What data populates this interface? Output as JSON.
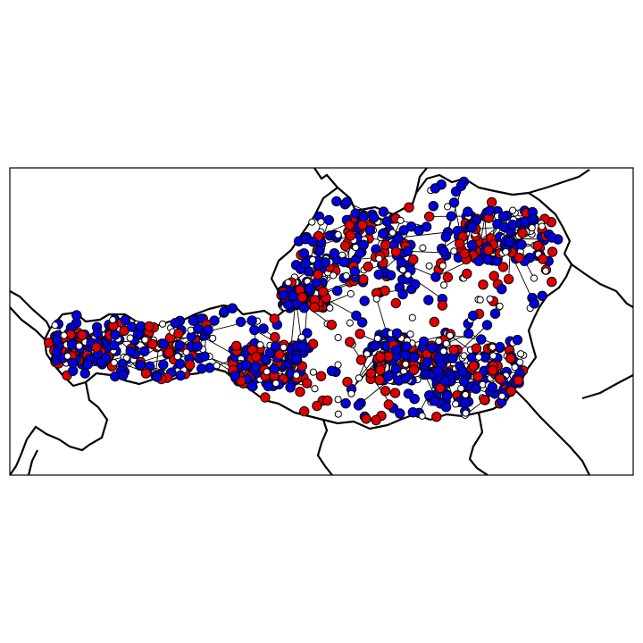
{
  "map": {
    "region": "Austria",
    "marker_colors": {
      "red": "#e00000",
      "blue": "#0000dd",
      "white": "#ffffff",
      "outline": "#000000"
    },
    "marker_counts_approx": {
      "red": 330,
      "blue": 620,
      "white": 310
    },
    "grid": false,
    "legend": "none"
  }
}
